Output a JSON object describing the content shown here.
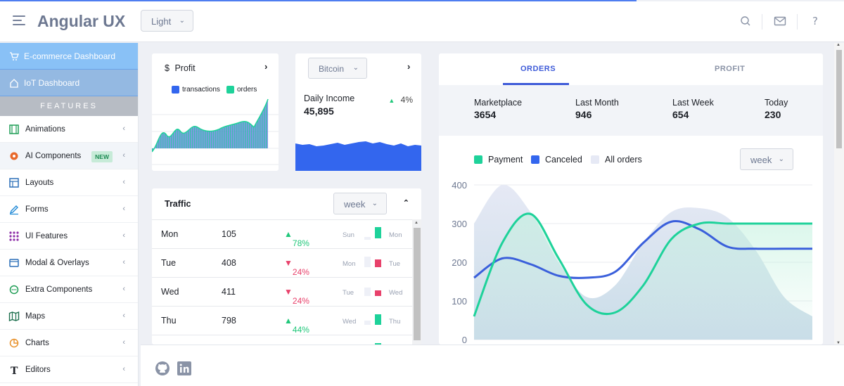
{
  "header": {
    "brand": "Angular UX",
    "theme_selected": "Light",
    "icons": [
      "menu-icon",
      "search-icon",
      "mail-icon",
      "help-icon"
    ]
  },
  "sidebar": {
    "dashboards": [
      {
        "label": "E-commerce Dashboard",
        "icon": "cart-icon"
      },
      {
        "label": "IoT Dashboard",
        "icon": "home-icon"
      }
    ],
    "section_label": "FEATURES",
    "items": [
      {
        "label": "Animations",
        "icon": "film-icon"
      },
      {
        "label": "AI Components",
        "icon": "ai-icon",
        "badge": "NEW"
      },
      {
        "label": "Layouts",
        "icon": "layout-icon"
      },
      {
        "label": "Forms",
        "icon": "pencil-icon"
      },
      {
        "label": "UI Features",
        "icon": "grid-dots-icon"
      },
      {
        "label": "Modal & Overlays",
        "icon": "window-icon"
      },
      {
        "label": "Extra Components",
        "icon": "chat-icon"
      },
      {
        "label": "Maps",
        "icon": "map-icon"
      },
      {
        "label": "Charts",
        "icon": "pie-chart-icon"
      },
      {
        "label": "Editors",
        "icon": "text-icon"
      }
    ]
  },
  "profit_card": {
    "currency_symbol": "$",
    "title": "Profit",
    "legend": [
      {
        "label": "transactions",
        "color": "#3366ee"
      },
      {
        "label": "orders",
        "color": "#1ed29a"
      }
    ]
  },
  "bitcoin_card": {
    "selected": "Bitcoin",
    "label": "Daily Income",
    "value": "45,895",
    "change": "4%",
    "colors": {
      "area": "#3366ee"
    }
  },
  "traffic_card": {
    "title": "Traffic",
    "period": "week",
    "rows": [
      {
        "day": "Mon",
        "value": "105",
        "change": "78%",
        "trend": "up",
        "prev_label": "Sun",
        "cur_label": "Mon"
      },
      {
        "day": "Tue",
        "value": "408",
        "change": "24%",
        "trend": "down",
        "prev_label": "Mon",
        "cur_label": "Tue"
      },
      {
        "day": "Wed",
        "value": "411",
        "change": "24%",
        "trend": "down",
        "prev_label": "Tue",
        "cur_label": "Wed"
      },
      {
        "day": "Thu",
        "value": "798",
        "change": "44%",
        "trend": "up",
        "prev_label": "Wed",
        "cur_label": "Thu"
      }
    ],
    "colors": {
      "up": "#1ed29a",
      "down": "#e8416b"
    }
  },
  "orders_card": {
    "tabs": [
      "ORDERS",
      "PROFIT"
    ],
    "active_tab": "ORDERS",
    "stats": [
      {
        "label": "Marketplace",
        "value": "3654"
      },
      {
        "label": "Last Month",
        "value": "946"
      },
      {
        "label": "Last Week",
        "value": "654"
      },
      {
        "label": "Today",
        "value": "230"
      }
    ],
    "period": "week"
  },
  "chart_data": {
    "type": "line",
    "title": "",
    "xlabel": "",
    "ylabel": "",
    "ylim": [
      0,
      400
    ],
    "yticks": [
      0,
      100,
      200,
      300,
      400
    ],
    "x": [
      0,
      1,
      2,
      3,
      4,
      5,
      6,
      7,
      8,
      9,
      10,
      11,
      12
    ],
    "series": [
      {
        "name": "Payment",
        "color": "#1ed29a",
        "values": [
          60,
          250,
          325,
          210,
          90,
          70,
          140,
          260,
          300,
          300,
          300,
          300,
          300
        ]
      },
      {
        "name": "Canceled",
        "color": "#3a5fdb",
        "values": [
          160,
          210,
          195,
          165,
          160,
          175,
          250,
          305,
          285,
          240,
          235,
          235,
          235
        ]
      },
      {
        "name": "All orders",
        "color": "#e6e9f5",
        "values": [
          300,
          400,
          330,
          200,
          110,
          140,
          250,
          330,
          340,
          315,
          230,
          110,
          60
        ]
      }
    ],
    "grid": true,
    "legend": "top-left"
  }
}
